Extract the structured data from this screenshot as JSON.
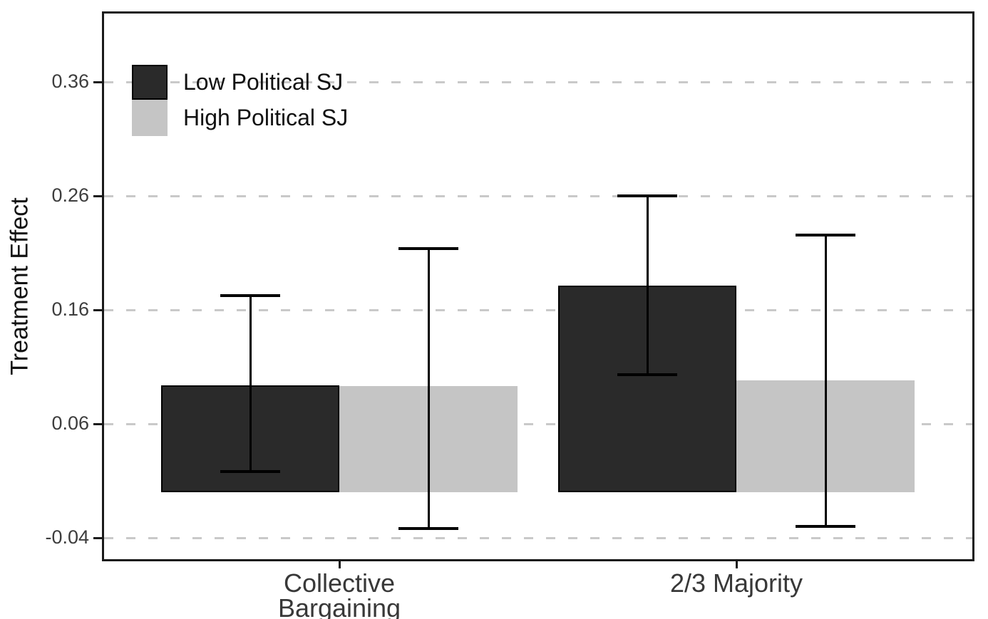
{
  "chart_data": {
    "type": "bar",
    "title": "",
    "xlabel": "",
    "ylabel": "Treatment Effect",
    "categories": [
      "Collective Bargaining",
      "2/3 Majority"
    ],
    "category_label_lines": [
      [
        "Collective",
        "Bargaining"
      ],
      [
        "2/3 Majority"
      ]
    ],
    "series": [
      {
        "name": "Low Political SJ",
        "color": "#2a2a2a",
        "border_color": "#000000",
        "values": [
          0.094,
          0.181
        ],
        "ci_low": [
          0.017,
          0.102
        ],
        "ci_high": [
          0.174,
          0.261
        ]
      },
      {
        "name": "High Political SJ",
        "color": "#c5c5c5",
        "border_color": "#c5c5c5",
        "values": [
          0.093,
          0.098
        ],
        "ci_low": [
          -0.033,
          -0.031
        ],
        "ci_high": [
          0.215,
          0.227
        ]
      }
    ],
    "error_bars": true,
    "baseline": 0,
    "yticks": [
      -0.04,
      0.06,
      0.16,
      0.26,
      0.36
    ],
    "ytick_labels": [
      "-0.04",
      "0.06",
      "0.16",
      "0.26",
      "0.36"
    ],
    "ylim": [
      -0.0606,
      0.4219
    ],
    "grid": {
      "orientation": "horizontal",
      "style": "dashed",
      "color": "#c9c9c9"
    },
    "legend": {
      "position": "top-left-inside"
    }
  }
}
